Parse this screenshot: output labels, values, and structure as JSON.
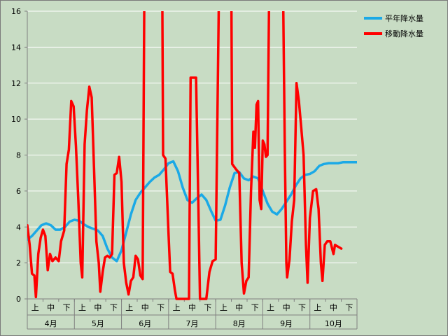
{
  "chart_data": {
    "type": "line",
    "title": "",
    "xlabel": "",
    "ylabel": "",
    "ylim": [
      0,
      16
    ],
    "yticks": [
      0,
      2,
      4,
      6,
      8,
      10,
      12,
      14,
      16
    ],
    "grid": true,
    "legend_position": "top-right",
    "x_range": [
      0,
      21
    ],
    "months": [
      "4月",
      "5月",
      "6月",
      "7月",
      "8月",
      "9月",
      "10月"
    ],
    "periods": [
      "上",
      "中",
      "下"
    ],
    "series": [
      {
        "name": "平年降水量",
        "color": "#1ba9e6",
        "points": [
          [
            0.0,
            3.3
          ],
          [
            0.3,
            3.5
          ],
          [
            0.6,
            3.8
          ],
          [
            0.9,
            4.1
          ],
          [
            1.2,
            4.2
          ],
          [
            1.5,
            4.1
          ],
          [
            1.8,
            3.85
          ],
          [
            2.1,
            3.85
          ],
          [
            2.4,
            4.0
          ],
          [
            2.7,
            4.3
          ],
          [
            3.0,
            4.4
          ],
          [
            3.3,
            4.35
          ],
          [
            3.6,
            4.15
          ],
          [
            3.9,
            4.0
          ],
          [
            4.2,
            3.9
          ],
          [
            4.5,
            3.8
          ],
          [
            4.8,
            3.5
          ],
          [
            5.1,
            2.8
          ],
          [
            5.4,
            2.3
          ],
          [
            5.7,
            2.1
          ],
          [
            6.0,
            2.7
          ],
          [
            6.3,
            3.7
          ],
          [
            6.6,
            4.7
          ],
          [
            6.9,
            5.5
          ],
          [
            7.2,
            5.9
          ],
          [
            7.5,
            6.2
          ],
          [
            7.8,
            6.5
          ],
          [
            8.1,
            6.75
          ],
          [
            8.4,
            6.9
          ],
          [
            8.7,
            7.2
          ],
          [
            9.0,
            7.55
          ],
          [
            9.3,
            7.65
          ],
          [
            9.6,
            7.1
          ],
          [
            9.9,
            6.2
          ],
          [
            10.2,
            5.5
          ],
          [
            10.5,
            5.35
          ],
          [
            10.8,
            5.6
          ],
          [
            11.1,
            5.8
          ],
          [
            11.4,
            5.5
          ],
          [
            11.7,
            4.9
          ],
          [
            12.0,
            4.35
          ],
          [
            12.3,
            4.4
          ],
          [
            12.6,
            5.2
          ],
          [
            12.9,
            6.2
          ],
          [
            13.2,
            7.0
          ],
          [
            13.5,
            7.05
          ],
          [
            13.8,
            6.7
          ],
          [
            14.1,
            6.6
          ],
          [
            14.4,
            6.8
          ],
          [
            14.7,
            6.7
          ],
          [
            15.0,
            6.0
          ],
          [
            15.3,
            5.3
          ],
          [
            15.6,
            4.85
          ],
          [
            15.9,
            4.7
          ],
          [
            16.2,
            5.0
          ],
          [
            16.5,
            5.4
          ],
          [
            16.8,
            5.8
          ],
          [
            17.1,
            6.3
          ],
          [
            17.4,
            6.7
          ],
          [
            17.7,
            6.9
          ],
          [
            18.0,
            6.95
          ],
          [
            18.3,
            7.1
          ],
          [
            18.6,
            7.4
          ],
          [
            18.9,
            7.5
          ],
          [
            19.2,
            7.55
          ],
          [
            19.5,
            7.55
          ],
          [
            19.8,
            7.55
          ],
          [
            20.1,
            7.6
          ],
          [
            20.4,
            7.6
          ],
          [
            20.7,
            7.6
          ],
          [
            21.0,
            7.6
          ]
        ]
      },
      {
        "name": "移動降水量",
        "color": "#ff0000",
        "points": [
          [
            0.0,
            4.1
          ],
          [
            0.15,
            3.0
          ],
          [
            0.3,
            1.4
          ],
          [
            0.45,
            1.3
          ],
          [
            0.55,
            0.1
          ],
          [
            0.7,
            2.5
          ],
          [
            0.85,
            3.4
          ],
          [
            1.0,
            3.85
          ],
          [
            1.15,
            3.5
          ],
          [
            1.3,
            1.6
          ],
          [
            1.45,
            2.5
          ],
          [
            1.6,
            2.1
          ],
          [
            1.8,
            2.3
          ],
          [
            2.0,
            2.1
          ],
          [
            2.15,
            3.2
          ],
          [
            2.35,
            3.8
          ],
          [
            2.5,
            7.5
          ],
          [
            2.65,
            8.3
          ],
          [
            2.8,
            11.0
          ],
          [
            2.95,
            10.7
          ],
          [
            3.1,
            8.5
          ],
          [
            3.25,
            5.5
          ],
          [
            3.4,
            2.0
          ],
          [
            3.5,
            1.2
          ],
          [
            3.65,
            8.6
          ],
          [
            3.8,
            10.5
          ],
          [
            3.95,
            11.8
          ],
          [
            4.1,
            11.2
          ],
          [
            4.25,
            7.3
          ],
          [
            4.4,
            3.2
          ],
          [
            4.55,
            2.0
          ],
          [
            4.65,
            0.4
          ],
          [
            4.8,
            1.5
          ],
          [
            4.95,
            2.3
          ],
          [
            5.1,
            2.4
          ],
          [
            5.25,
            2.3
          ],
          [
            5.4,
            2.5
          ],
          [
            5.55,
            6.9
          ],
          [
            5.7,
            7.0
          ],
          [
            5.85,
            7.9
          ],
          [
            6.0,
            6.5
          ],
          [
            6.15,
            2.0
          ],
          [
            6.3,
            0.9
          ],
          [
            6.45,
            0.25
          ],
          [
            6.6,
            1.0
          ],
          [
            6.75,
            1.2
          ],
          [
            6.9,
            2.4
          ],
          [
            7.05,
            2.2
          ],
          [
            7.2,
            1.3
          ],
          [
            7.35,
            1.1
          ],
          [
            7.45,
            16.5
          ],
          [
            7.55,
            16.5
          ],
          [
            7.6,
            16.5
          ],
          [
            8.6,
            16.5
          ],
          [
            8.65,
            8.0
          ],
          [
            8.8,
            7.8
          ],
          [
            9.0,
            3.5
          ],
          [
            9.1,
            1.5
          ],
          [
            9.25,
            1.4
          ],
          [
            9.4,
            0.5
          ],
          [
            9.5,
            0.0
          ],
          [
            10.1,
            0.0
          ],
          [
            10.3,
            0.0
          ],
          [
            10.4,
            12.3
          ],
          [
            10.75,
            12.3
          ],
          [
            10.9,
            5.0
          ],
          [
            11.0,
            0.0
          ],
          [
            11.4,
            0.0
          ],
          [
            11.6,
            1.5
          ],
          [
            11.8,
            2.1
          ],
          [
            12.0,
            2.2
          ],
          [
            12.2,
            16.5
          ],
          [
            12.4,
            16.5
          ],
          [
            13.0,
            16.5
          ],
          [
            13.05,
            7.5
          ],
          [
            13.3,
            7.2
          ],
          [
            13.5,
            7.0
          ],
          [
            13.65,
            2.0
          ],
          [
            13.8,
            0.3
          ],
          [
            13.95,
            1.0
          ],
          [
            14.1,
            1.2
          ],
          [
            14.25,
            6.0
          ],
          [
            14.4,
            9.3
          ],
          [
            14.5,
            8.4
          ],
          [
            14.6,
            10.8
          ],
          [
            14.7,
            11.0
          ],
          [
            14.8,
            5.5
          ],
          [
            14.9,
            5.0
          ],
          [
            15.0,
            8.8
          ],
          [
            15.1,
            8.6
          ],
          [
            15.2,
            7.9
          ],
          [
            15.3,
            8.0
          ],
          [
            15.4,
            16.5
          ],
          [
            15.6,
            16.5
          ],
          [
            16.3,
            16.5
          ],
          [
            16.4,
            8.5
          ],
          [
            16.5,
            2.0
          ],
          [
            16.55,
            1.2
          ],
          [
            16.7,
            2.2
          ],
          [
            16.85,
            4.3
          ],
          [
            17.0,
            5.5
          ],
          [
            17.15,
            12.0
          ],
          [
            17.3,
            11.0
          ],
          [
            17.45,
            9.5
          ],
          [
            17.6,
            8.0
          ],
          [
            17.75,
            3.0
          ],
          [
            17.85,
            0.9
          ],
          [
            18.0,
            4.5
          ],
          [
            18.2,
            6.0
          ],
          [
            18.4,
            6.1
          ],
          [
            18.55,
            5.0
          ],
          [
            18.7,
            2.0
          ],
          [
            18.8,
            1.0
          ],
          [
            18.95,
            3.0
          ],
          [
            19.1,
            3.2
          ],
          [
            19.3,
            3.2
          ],
          [
            19.5,
            2.5
          ],
          [
            19.6,
            3.0
          ],
          [
            19.8,
            2.9
          ],
          [
            20.0,
            2.8
          ]
        ]
      }
    ]
  }
}
